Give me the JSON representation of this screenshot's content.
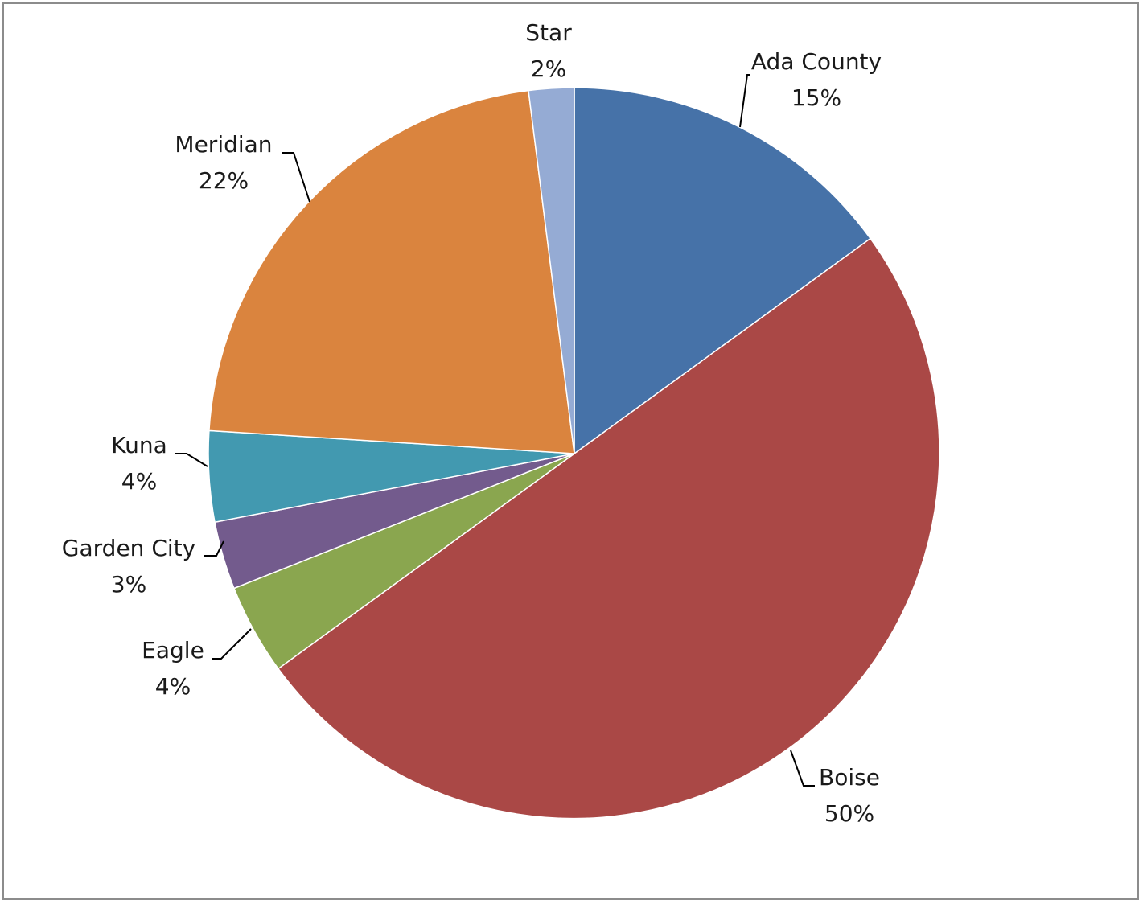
{
  "chart_data": {
    "type": "pie",
    "start_angle_deg": 0,
    "direction": "clockwise",
    "legend": "none",
    "slices": [
      {
        "label": "Ada County",
        "value": 15,
        "pct_label": "15%",
        "color": "#4672a8"
      },
      {
        "label": "Boise",
        "value": 50,
        "pct_label": "50%",
        "color": "#aa4846"
      },
      {
        "label": "Eagle",
        "value": 4,
        "pct_label": "4%",
        "color": "#8aa64f"
      },
      {
        "label": "Garden City",
        "value": 3,
        "pct_label": "3%",
        "color": "#735b8d"
      },
      {
        "label": "Kuna",
        "value": 4,
        "pct_label": "4%",
        "color": "#4299b0"
      },
      {
        "label": "Meridian",
        "value": 22,
        "pct_label": "22%",
        "color": "#da843e"
      },
      {
        "label": "Star",
        "value": 2,
        "pct_label": "2%",
        "color": "#95abd4"
      }
    ]
  }
}
